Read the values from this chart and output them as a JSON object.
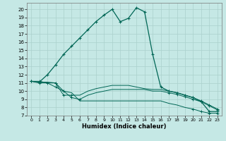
{
  "xlabel": "Humidex (Indice chaleur)",
  "bg_color": "#c5e8e5",
  "grid_color": "#aad0cc",
  "line_color": "#006655",
  "xlim": [
    -0.5,
    23.5
  ],
  "ylim": [
    7,
    20.8
  ],
  "xticks": [
    0,
    1,
    2,
    3,
    4,
    5,
    6,
    7,
    8,
    9,
    10,
    11,
    12,
    13,
    14,
    15,
    16,
    17,
    18,
    19,
    20,
    21,
    22,
    23
  ],
  "yticks": [
    7,
    8,
    9,
    10,
    11,
    12,
    13,
    14,
    15,
    16,
    17,
    18,
    19,
    20
  ],
  "line1_x": [
    0,
    1,
    2,
    3,
    4,
    5,
    6,
    7,
    8,
    9,
    10,
    11,
    12,
    13,
    14,
    15,
    16,
    17,
    18,
    19,
    20,
    21,
    22,
    23
  ],
  "line1_y": [
    11.2,
    11.1,
    11.1,
    11.0,
    10.0,
    9.8,
    8.8,
    8.8,
    8.8,
    8.8,
    8.8,
    8.8,
    8.8,
    8.8,
    8.8,
    8.8,
    8.8,
    8.5,
    8.3,
    8.0,
    7.8,
    7.5,
    7.3,
    7.3
  ],
  "line2_x": [
    0,
    1,
    2,
    3,
    4,
    5,
    6,
    7,
    8,
    9,
    10,
    11,
    12,
    13,
    14,
    15,
    16,
    17,
    18,
    19,
    20,
    21,
    22,
    23
  ],
  "line2_y": [
    11.2,
    11.2,
    11.0,
    11.0,
    9.5,
    9.5,
    9.5,
    10.0,
    10.3,
    10.5,
    10.7,
    10.7,
    10.7,
    10.5,
    10.3,
    10.2,
    10.2,
    10.0,
    9.8,
    9.5,
    9.2,
    8.8,
    8.3,
    7.8
  ],
  "line3_x": [
    0,
    1,
    2,
    3,
    4,
    5,
    6,
    7,
    8,
    9,
    10,
    11,
    12,
    13,
    14,
    15,
    16,
    17,
    18,
    19,
    20,
    21,
    22,
    23
  ],
  "line3_y": [
    11.2,
    11.0,
    11.0,
    10.5,
    10.0,
    9.2,
    9.0,
    9.5,
    9.8,
    10.0,
    10.2,
    10.2,
    10.2,
    10.2,
    10.2,
    10.0,
    10.0,
    9.8,
    9.6,
    9.3,
    9.0,
    8.7,
    8.2,
    7.7
  ],
  "line4_x": [
    0,
    1,
    2,
    3,
    4,
    5,
    6,
    7,
    8,
    9,
    10,
    11,
    12,
    13,
    14,
    15,
    16,
    17,
    18,
    19,
    20,
    21,
    22,
    23
  ],
  "line4_y": [
    11.2,
    11.1,
    12.0,
    13.2,
    14.5,
    15.5,
    16.5,
    17.5,
    18.5,
    19.3,
    20.0,
    18.5,
    18.9,
    20.2,
    19.7,
    14.5,
    10.5,
    10.0,
    9.8,
    9.5,
    9.2,
    8.7,
    7.5,
    7.5
  ]
}
